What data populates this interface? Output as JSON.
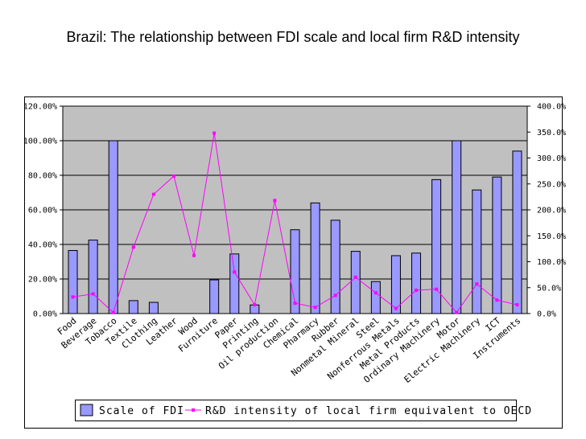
{
  "title": "Brazil: The relationship between FDI scale and local firm R&D intensity",
  "colors": {
    "plot_bg": "#c0c0c0",
    "bar": "#9999ff",
    "line": "#ff00ff",
    "grid": "#000000"
  },
  "chart_data": {
    "type": "bar",
    "title": "Brazil: The relationship between FDI scale and local firm R&D intensity",
    "categories": [
      "Food",
      "Beverage",
      "Tobacco",
      "Textile",
      "Clothing",
      "Leather",
      "Wood",
      "Furniture",
      "Paper",
      "Printing",
      "Oil production",
      "Chemical",
      "Pharmacy",
      "Rubber",
      "Nonmetal Mineral",
      "Steel",
      "Nonferrous Metals",
      "Metal Products",
      "Ordinary Machinery",
      "Motor",
      "Electric Machinery",
      "ICT",
      "Instruments"
    ],
    "series": [
      {
        "name": "Scale of FDI",
        "type": "bar",
        "axis": "left",
        "values": [
          36.5,
          42.5,
          100,
          7.5,
          6.5,
          0,
          0,
          19.5,
          34.5,
          5,
          0,
          48.5,
          64,
          54,
          36,
          18.5,
          33.5,
          35,
          77.5,
          100,
          71.5,
          79,
          94
        ]
      },
      {
        "name": "R&D intensity of local firm equivalent to OECD",
        "type": "line",
        "axis": "right",
        "values": [
          32,
          38,
          2,
          128,
          230,
          265,
          112,
          348,
          80,
          17,
          218,
          20,
          12,
          35,
          70,
          40,
          10,
          45,
          47,
          2,
          57,
          26,
          17
        ]
      }
    ],
    "y_left": {
      "ticks": [
        "0.00%",
        "20.00%",
        "40.00%",
        "60.00%",
        "80.00%",
        "100.00%",
        "120.00%"
      ],
      "range": [
        0,
        120
      ]
    },
    "y_right": {
      "ticks": [
        "0.0%",
        "50.0%",
        "100.0%",
        "150.0%",
        "200.0%",
        "250.0%",
        "300.0%",
        "350.0%",
        "400.0%"
      ],
      "range": [
        0,
        400
      ]
    },
    "grid": true,
    "legend": "bottom"
  }
}
